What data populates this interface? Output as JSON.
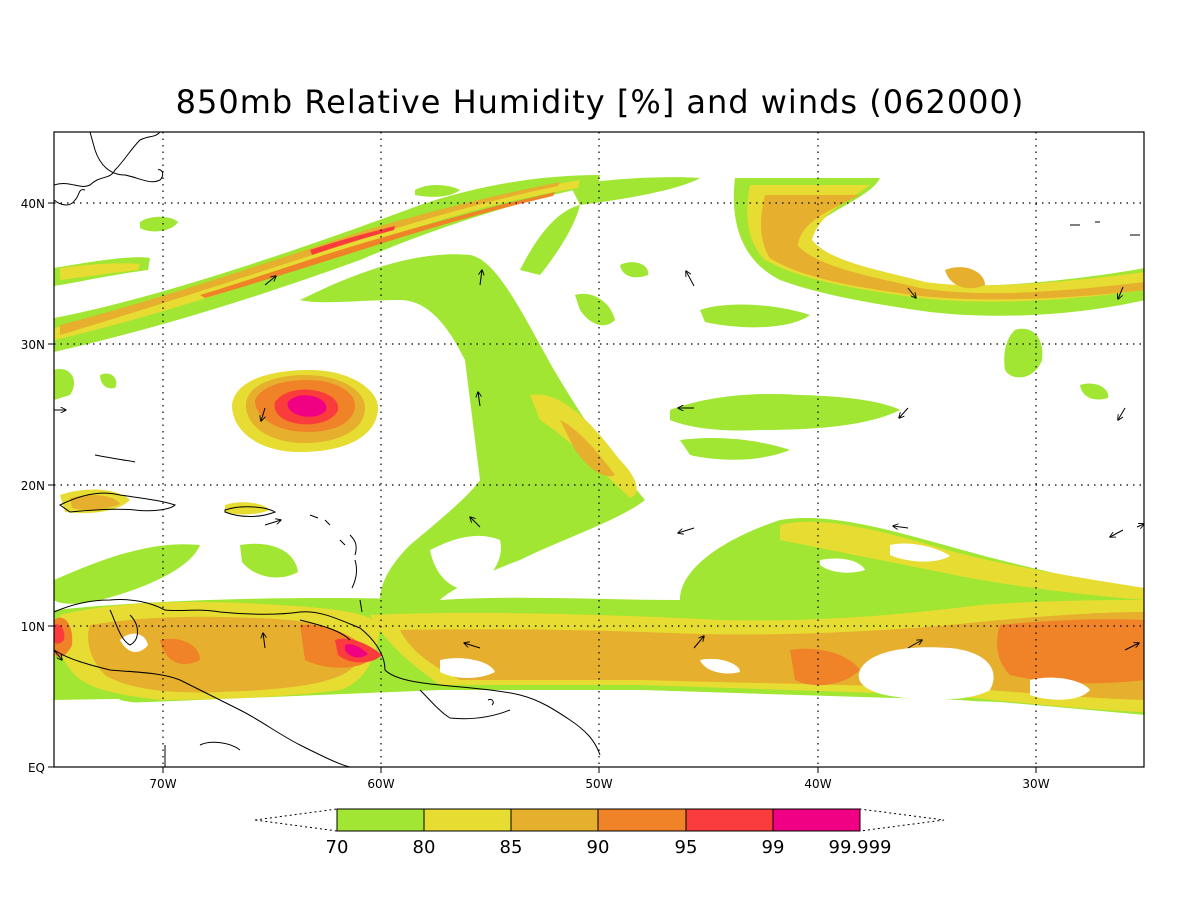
{
  "title": "850mb Relative Humidity [%] and winds (062000)",
  "map": {
    "lat_labels": [
      "EQ",
      "10N",
      "20N",
      "30N",
      "40N"
    ],
    "lon_labels": [
      "70W",
      "60W",
      "50W",
      "40W",
      "30W"
    ]
  },
  "colorbar": {
    "labels": [
      "70",
      "80",
      "85",
      "90",
      "95",
      "99",
      "99.999"
    ],
    "colors": [
      "#a0e632",
      "#e6dc32",
      "#e6af2d",
      "#f08228",
      "#fa3c3c",
      "#f00082"
    ]
  }
}
